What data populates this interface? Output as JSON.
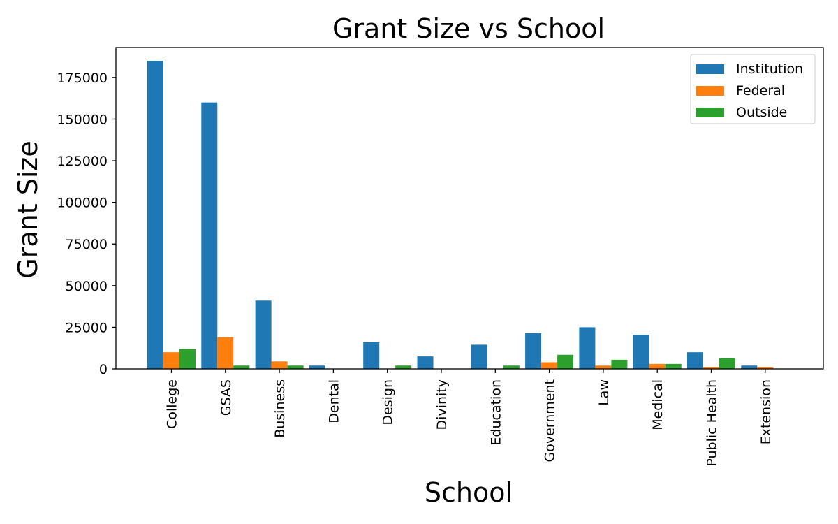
{
  "chart_data": {
    "type": "bar",
    "title": "Grant Size vs School",
    "xlabel": "School",
    "ylabel": "Grant Size",
    "categories": [
      "College",
      "GSAS",
      "Business",
      "Dental",
      "Design",
      "Divinity",
      "Education",
      "Government",
      "Law",
      "Medical",
      "Public Health",
      "Extension"
    ],
    "series": [
      {
        "name": "Institution",
        "color": "#1f77b4",
        "values": [
          185000,
          160000,
          41000,
          2000,
          16000,
          7500,
          14500,
          21500,
          25000,
          20500,
          10000,
          2000
        ]
      },
      {
        "name": "Federal",
        "color": "#ff7f0e",
        "values": [
          10000,
          19000,
          4500,
          0,
          0,
          0,
          0,
          4000,
          2000,
          3000,
          1000,
          1000
        ]
      },
      {
        "name": "Outside",
        "color": "#2ca02c",
        "values": [
          12000,
          2000,
          2000,
          0,
          2000,
          0,
          2000,
          8500,
          5500,
          3000,
          6500,
          0
        ]
      }
    ],
    "ylim": [
      0,
      193000
    ],
    "yticks": [
      0,
      25000,
      50000,
      75000,
      100000,
      125000,
      150000,
      175000
    ],
    "ytick_labels": [
      "0",
      "25000",
      "50000",
      "75000",
      "100000",
      "125000",
      "150000",
      "175000"
    ],
    "legend_position": "top-right",
    "grid": false
  }
}
